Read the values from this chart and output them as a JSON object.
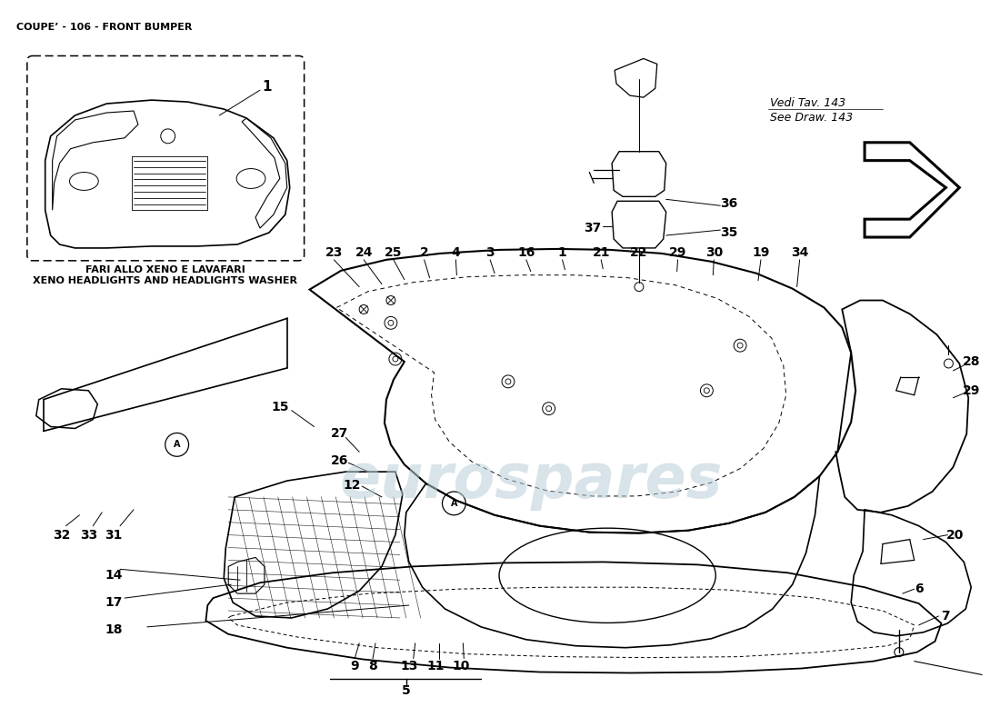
{
  "title": "COUPE’ - 106 - FRONT BUMPER",
  "background_color": "#ffffff",
  "watermark_text": "eurospares",
  "watermark_color": "#b8cfd8",
  "inset_label_line1": "FARI ALLO XENO E LAVAFARI",
  "inset_label_line2": "XENO HEADLIGHTS AND HEADLIGHTS WASHER",
  "vedi_line1": "Vedi Tav. 143",
  "vedi_line2": "See Draw. 143",
  "figsize": [
    11.0,
    8.0
  ],
  "dpi": 100
}
